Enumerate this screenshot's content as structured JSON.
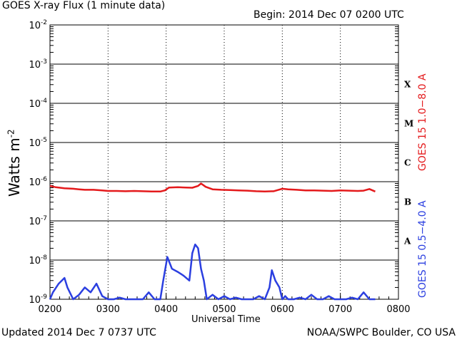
{
  "header": {
    "title": "GOES X-ray Flux (1 minute data)",
    "begin": "Begin: 2014 Dec 07 0200 UTC"
  },
  "footer": {
    "updated": "Updated 2014 Dec  7 0737 UTC",
    "credit": "NOAA/SWPC Boulder, CO USA"
  },
  "axes": {
    "xlabel": "Universal Time",
    "ylabel_base": "Watts m",
    "ylabel_exp": "-2",
    "y_ticks": [
      {
        "exp": -2,
        "label_base": "10",
        "label_exp": "-2"
      },
      {
        "exp": -3,
        "label_base": "10",
        "label_exp": "-3"
      },
      {
        "exp": -4,
        "label_base": "10",
        "label_exp": "-4"
      },
      {
        "exp": -5,
        "label_base": "10",
        "label_exp": "-5"
      },
      {
        "exp": -6,
        "label_base": "10",
        "label_exp": "-6"
      },
      {
        "exp": -7,
        "label_base": "10",
        "label_exp": "-7"
      },
      {
        "exp": -8,
        "label_base": "10",
        "label_exp": "-8"
      },
      {
        "exp": -9,
        "label_base": "10",
        "label_exp": "-9"
      }
    ],
    "x_ticks": [
      {
        "hour": 2,
        "label": "0200"
      },
      {
        "hour": 3,
        "label": "0300"
      },
      {
        "hour": 4,
        "label": "0400"
      },
      {
        "hour": 5,
        "label": "0500"
      },
      {
        "hour": 6,
        "label": "0600"
      },
      {
        "hour": 7,
        "label": "0700"
      },
      {
        "hour": 8,
        "label": "0800"
      }
    ],
    "flare_classes": [
      {
        "label": "X",
        "exp": -3.5
      },
      {
        "label": "M",
        "exp": -4.5
      },
      {
        "label": "C",
        "exp": -5.5
      },
      {
        "label": "B",
        "exp": -6.5
      },
      {
        "label": "A",
        "exp": -7.5
      }
    ]
  },
  "legend": {
    "long": "GOES 15 1.0−8.0 A",
    "short": "GOES 15 0.5−4.0 A"
  },
  "colors": {
    "long": "#e41a1c",
    "short": "#2b3fe0"
  },
  "chart_data": {
    "type": "line",
    "title": "GOES X-ray Flux (1 minute data)",
    "xlabel": "Universal Time",
    "ylabel": "Watts m-2",
    "x_unit": "hour UTC",
    "xlim": [
      2,
      8
    ],
    "ylim": [
      1e-09,
      0.01
    ],
    "yscale": "log",
    "grid": true,
    "series": [
      {
        "name": "GOES 15 1.0−8.0 A",
        "x": [
          2.0,
          2.1,
          2.25,
          2.4,
          2.5,
          2.6,
          2.75,
          2.9,
          3.0,
          3.15,
          3.3,
          3.45,
          3.6,
          3.75,
          3.9,
          3.98,
          4.05,
          4.2,
          4.35,
          4.45,
          4.55,
          4.6,
          4.68,
          4.8,
          4.95,
          5.1,
          5.25,
          5.4,
          5.55,
          5.7,
          5.85,
          6.0,
          6.1,
          6.25,
          6.4,
          6.55,
          6.7,
          6.85,
          7.0,
          7.15,
          7.3,
          7.4,
          7.5,
          7.6
        ],
        "y": [
          7.8e-07,
          7.2e-07,
          6.8e-07,
          6.6e-07,
          6.4e-07,
          6.2e-07,
          6.2e-07,
          6e-07,
          5.8e-07,
          5.8e-07,
          5.7e-07,
          5.8e-07,
          5.7e-07,
          5.6e-07,
          5.6e-07,
          6e-07,
          7.1e-07,
          7.2e-07,
          7.1e-07,
          7e-07,
          7.8e-07,
          9e-07,
          7.4e-07,
          6.4e-07,
          6.2e-07,
          6.1e-07,
          6e-07,
          5.9e-07,
          5.7e-07,
          5.6e-07,
          5.7e-07,
          6.6e-07,
          6.4e-07,
          6.2e-07,
          6e-07,
          6e-07,
          5.9e-07,
          5.8e-07,
          6e-07,
          5.9e-07,
          5.8e-07,
          5.9e-07,
          6.5e-07,
          5.6e-07
        ]
      },
      {
        "name": "GOES 15 0.5−4.0 A",
        "x": [
          2.0,
          2.05,
          2.15,
          2.25,
          2.3,
          2.4,
          2.5,
          2.6,
          2.7,
          2.8,
          2.9,
          3.0,
          3.1,
          3.2,
          3.3,
          3.4,
          3.5,
          3.6,
          3.7,
          3.8,
          3.9,
          3.95,
          4.0,
          4.02,
          4.1,
          4.2,
          4.3,
          4.4,
          4.45,
          4.5,
          4.55,
          4.6,
          4.65,
          4.7,
          4.8,
          4.9,
          5.0,
          5.1,
          5.2,
          5.3,
          5.4,
          5.5,
          5.6,
          5.7,
          5.78,
          5.82,
          5.88,
          5.95,
          6.0,
          6.05,
          6.1,
          6.2,
          6.3,
          6.4,
          6.5,
          6.6,
          6.7,
          6.8,
          6.9,
          7.0,
          7.1,
          7.2,
          7.3,
          7.4,
          7.5,
          7.6
        ],
        "y": [
          1e-09,
          1.5e-09,
          2.5e-09,
          3.5e-09,
          2e-09,
          1e-09,
          1.3e-09,
          2e-09,
          1.5e-09,
          2.5e-09,
          1.2e-09,
          1e-09,
          1e-09,
          1.1e-09,
          1e-09,
          1e-09,
          1e-09,
          1e-09,
          1.5e-09,
          1e-09,
          1e-09,
          3e-09,
          8e-09,
          1.2e-08,
          6e-09,
          5e-09,
          4e-09,
          3e-09,
          1.5e-08,
          2.5e-08,
          2e-08,
          6e-09,
          3e-09,
          1e-09,
          1.3e-09,
          1e-09,
          1.2e-09,
          1e-09,
          1.1e-09,
          1e-09,
          1e-09,
          1e-09,
          1.2e-09,
          1e-09,
          2e-09,
          5.5e-09,
          3e-09,
          2e-09,
          1e-09,
          1.2e-09,
          1e-09,
          1e-09,
          1.1e-09,
          1e-09,
          1.3e-09,
          1e-09,
          1e-09,
          1.2e-09,
          1e-09,
          1e-09,
          1e-09,
          1.1e-09,
          1e-09,
          1.5e-09,
          1e-09,
          1e-09
        ]
      }
    ]
  }
}
